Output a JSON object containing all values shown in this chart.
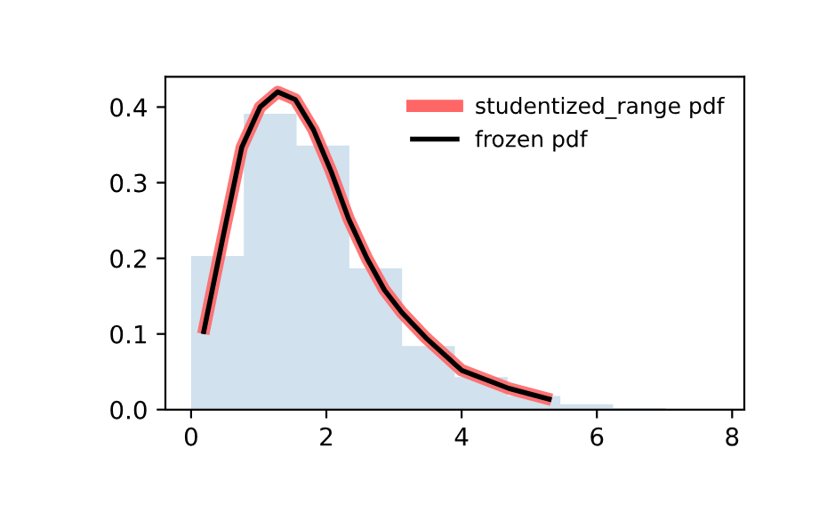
{
  "chart_data": {
    "type": "histogram",
    "bins": [
      0,
      0.78,
      1.56,
      2.34,
      3.12,
      3.9,
      4.68,
      5.46,
      6.24,
      7.02
    ],
    "values": [
      0.203,
      0.391,
      0.349,
      0.187,
      0.084,
      0.043,
      0.018,
      0.007,
      0.002
    ],
    "color": "#d1e1ee",
    "series": [
      {
        "type": "line",
        "name": "studentized_range pdf",
        "color": "#ff6666",
        "x": [
          0.18,
          0.49,
          0.75,
          1.02,
          1.28,
          1.54,
          1.81,
          2.07,
          2.33,
          2.6,
          2.86,
          3.12,
          3.47,
          4.0,
          4.7,
          5.33
        ],
        "values": [
          0.1,
          0.236,
          0.347,
          0.4,
          0.42,
          0.41,
          0.37,
          0.315,
          0.252,
          0.2,
          0.158,
          0.128,
          0.095,
          0.052,
          0.028,
          0.013
        ]
      },
      {
        "type": "line",
        "name": "frozen pdf",
        "color": "#000000",
        "x": [
          0.18,
          0.49,
          0.75,
          1.02,
          1.28,
          1.54,
          1.81,
          2.07,
          2.33,
          2.6,
          2.86,
          3.12,
          3.47,
          4.0,
          4.7,
          5.33
        ],
        "values": [
          0.1,
          0.236,
          0.347,
          0.4,
          0.42,
          0.41,
          0.37,
          0.315,
          0.252,
          0.2,
          0.158,
          0.128,
          0.095,
          0.052,
          0.028,
          0.013
        ]
      }
    ],
    "xlim": [
      -0.38,
      8.18
    ],
    "ylim": [
      0,
      0.44
    ],
    "xticks": [
      0,
      2,
      4,
      6,
      8
    ],
    "yticks": [
      {
        "value": 0,
        "label": "0.0"
      },
      0.1,
      0.2,
      0.3,
      0.4
    ],
    "legend": "top right",
    "grid": false
  }
}
